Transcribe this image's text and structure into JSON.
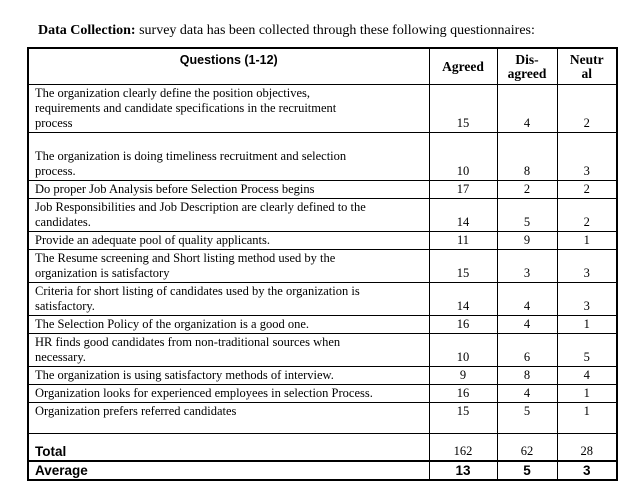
{
  "colors": {
    "text": "#000000",
    "border": "#000000",
    "background": "#ffffff"
  },
  "intro": {
    "lead": "Data Collection:",
    "rest": " survey data has been collected through these following questionnaires:"
  },
  "table": {
    "header": {
      "questions": "Questions (1-12)",
      "agreed_lines": [
        "Agreed"
      ],
      "disagreed_lines": [
        "Dis-",
        "agreed"
      ],
      "neutral_lines": [
        "Neutr",
        "al"
      ]
    },
    "rows": [
      {
        "question": "The organization clearly define the position objectives,\nrequirements and candidate specifications in the recruitment\nprocess",
        "agreed": "15",
        "disagreed": "4",
        "neutral": "2",
        "variant": ""
      },
      {
        "question": "The organization is doing timeliness recruitment and selection\nprocess.",
        "agreed": "10",
        "disagreed": "8",
        "neutral": "3",
        "variant": "lead-space"
      },
      {
        "question": "Do proper Job Analysis before Selection Process begins",
        "agreed": "17",
        "disagreed": "2",
        "neutral": "2",
        "variant": ""
      },
      {
        "question": "Job Responsibilities and Job Description are clearly defined to the\ncandidates.",
        "agreed": "14",
        "disagreed": "5",
        "neutral": "2",
        "variant": ""
      },
      {
        "question": "Provide an adequate pool of quality applicants.",
        "agreed": "11",
        "disagreed": "9",
        "neutral": "1",
        "variant": ""
      },
      {
        "question": "The Resume screening and Short listing method used by the\norganization is satisfactory",
        "agreed": "15",
        "disagreed": "3",
        "neutral": "3",
        "variant": ""
      },
      {
        "question": "Criteria for short listing of candidates used by the organization is\nsatisfactory.",
        "agreed": "14",
        "disagreed": "4",
        "neutral": "3",
        "variant": ""
      },
      {
        "question": "The Selection Policy of the organization is a good one.",
        "agreed": "16",
        "disagreed": "4",
        "neutral": "1",
        "variant": ""
      },
      {
        "question": "HR finds good candidates from non-traditional sources when\nnecessary.",
        "agreed": "10",
        "disagreed": "6",
        "neutral": "5",
        "variant": ""
      },
      {
        "question": "The organization is using satisfactory methods of interview.",
        "agreed": "9",
        "disagreed": "8",
        "neutral": "4",
        "variant": ""
      },
      {
        "question": "Organization looks for experienced employees in selection Process.",
        "agreed": "16",
        "disagreed": "4",
        "neutral": "1",
        "variant": ""
      },
      {
        "question": "Organization prefers referred candidates",
        "agreed": "15",
        "disagreed": "5",
        "neutral": "1",
        "variant": "trail-space"
      }
    ],
    "total": {
      "label": "Total",
      "agreed": "162",
      "disagreed": "62",
      "neutral": "28"
    },
    "average": {
      "label": "Average",
      "agreed": "13",
      "disagreed": "5",
      "neutral": "3"
    }
  }
}
